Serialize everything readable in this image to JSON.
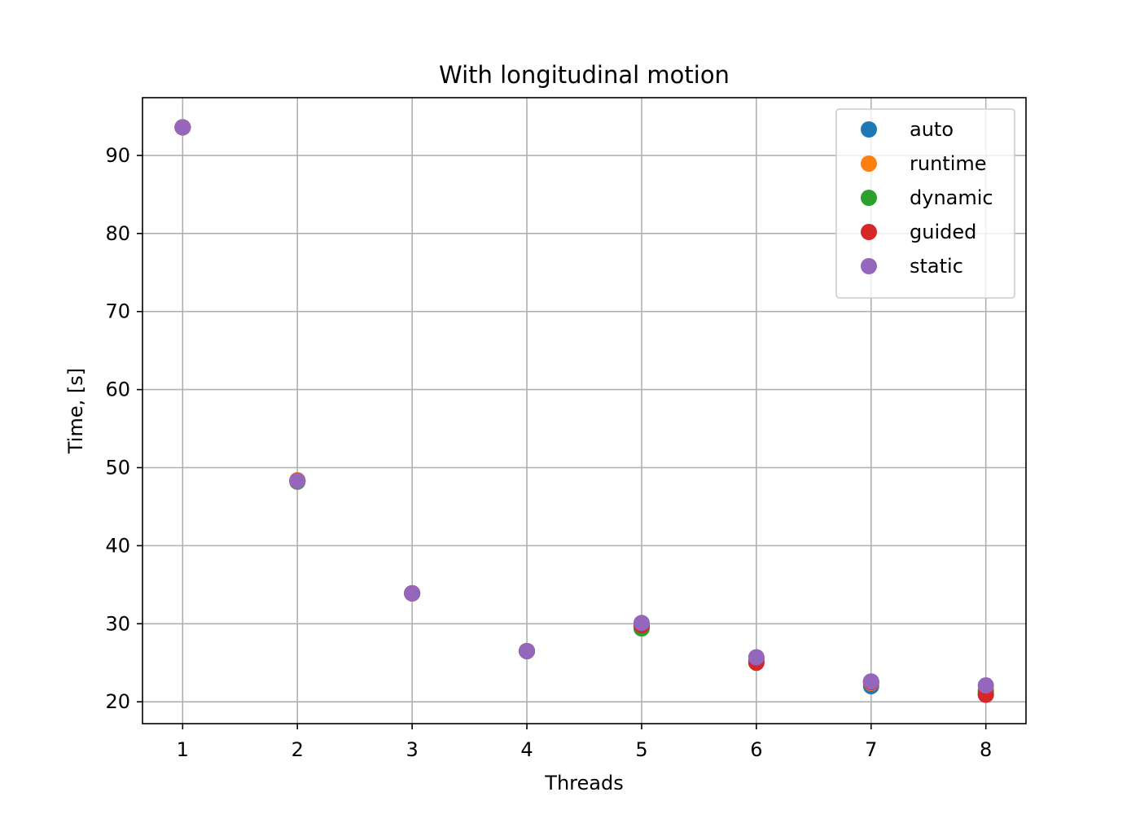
{
  "chart_data": {
    "type": "scatter",
    "title": "With longitudinal motion",
    "xlabel": "Threads",
    "ylabel": "Time, [s]",
    "xlim": [
      0.65,
      8.35
    ],
    "ylim": [
      17.2,
      97.4
    ],
    "xticks": [
      1,
      2,
      3,
      4,
      5,
      6,
      7,
      8
    ],
    "yticks": [
      20,
      30,
      40,
      50,
      60,
      70,
      80,
      90
    ],
    "grid": true,
    "legend_position": "upper right",
    "x": [
      1,
      2,
      3,
      4,
      5,
      6,
      7,
      8
    ],
    "series": [
      {
        "name": "auto",
        "color": "#1f77b4",
        "values": [
          93.6,
          48.3,
          33.9,
          26.5,
          29.6,
          25.2,
          22.0,
          21.0
        ]
      },
      {
        "name": "runtime",
        "color": "#ff7f0e",
        "values": [
          93.6,
          48.4,
          33.9,
          26.5,
          30.0,
          25.7,
          22.4,
          21.5
        ]
      },
      {
        "name": "dynamic",
        "color": "#2ca02c",
        "values": [
          93.6,
          48.2,
          33.9,
          26.5,
          29.4,
          25.4,
          22.6,
          21.3
        ]
      },
      {
        "name": "guided",
        "color": "#d62728",
        "values": [
          93.6,
          48.3,
          33.9,
          26.5,
          29.8,
          25.0,
          22.5,
          20.9
        ]
      },
      {
        "name": "static",
        "color": "#9467bd",
        "values": [
          93.6,
          48.3,
          33.9,
          26.5,
          30.1,
          25.7,
          22.6,
          22.1
        ]
      }
    ]
  }
}
